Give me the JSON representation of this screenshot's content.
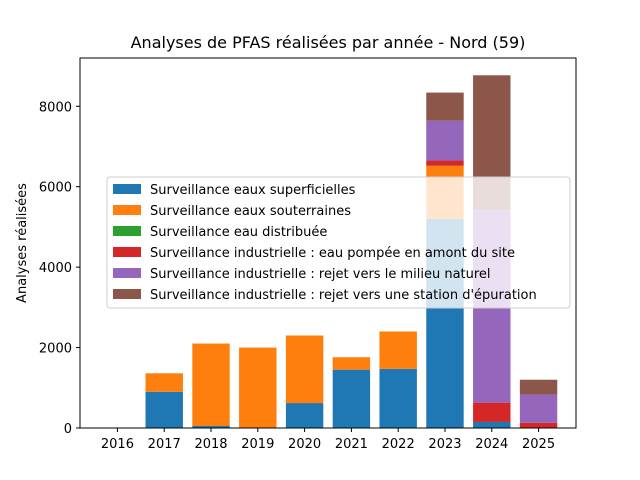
{
  "chart_data": {
    "type": "bar",
    "stacked": true,
    "title": "Analyses de PFAS réalisées par année - Nord (59)",
    "xlabel": "",
    "ylabel": "Analyses réalisées",
    "categories": [
      "2016",
      "2017",
      "2018",
      "2019",
      "2020",
      "2021",
      "2022",
      "2023",
      "2024",
      "2025"
    ],
    "ylim": [
      0,
      9200
    ],
    "yticks": [
      0,
      2000,
      4000,
      6000,
      8000
    ],
    "ytick_labels": [
      "0",
      "2000",
      "4000",
      "6000",
      "8000"
    ],
    "grid": false,
    "legend_position": "center-left",
    "series": [
      {
        "name": "Surveillance eaux superficielles",
        "color": "#1f77b4",
        "values": [
          0,
          900,
          50,
          0,
          620,
          1450,
          1470,
          5200,
          150,
          0
        ]
      },
      {
        "name": "Surveillance eaux souterraines",
        "color": "#ff7f0e",
        "values": [
          0,
          460,
          2050,
          2000,
          1680,
          310,
          930,
          1320,
          0,
          0
        ]
      },
      {
        "name": "Surveillance eau distribuée",
        "color": "#2ca02c",
        "values": [
          0,
          0,
          0,
          0,
          0,
          0,
          0,
          0,
          0,
          0
        ]
      },
      {
        "name": "Surveillance industrielle : eau pompée en amont du site",
        "color": "#d62728",
        "values": [
          0,
          0,
          0,
          0,
          0,
          0,
          0,
          130,
          480,
          130
        ]
      },
      {
        "name": "Surveillance industrielle : rejet vers le milieu naturel",
        "color": "#9467bd",
        "values": [
          0,
          0,
          0,
          0,
          0,
          0,
          0,
          990,
          4800,
          700
        ]
      },
      {
        "name": "Surveillance industrielle : rejet vers une station d'épuration",
        "color": "#8c564b",
        "values": [
          0,
          0,
          0,
          0,
          0,
          0,
          0,
          700,
          3340,
          370
        ]
      }
    ]
  }
}
